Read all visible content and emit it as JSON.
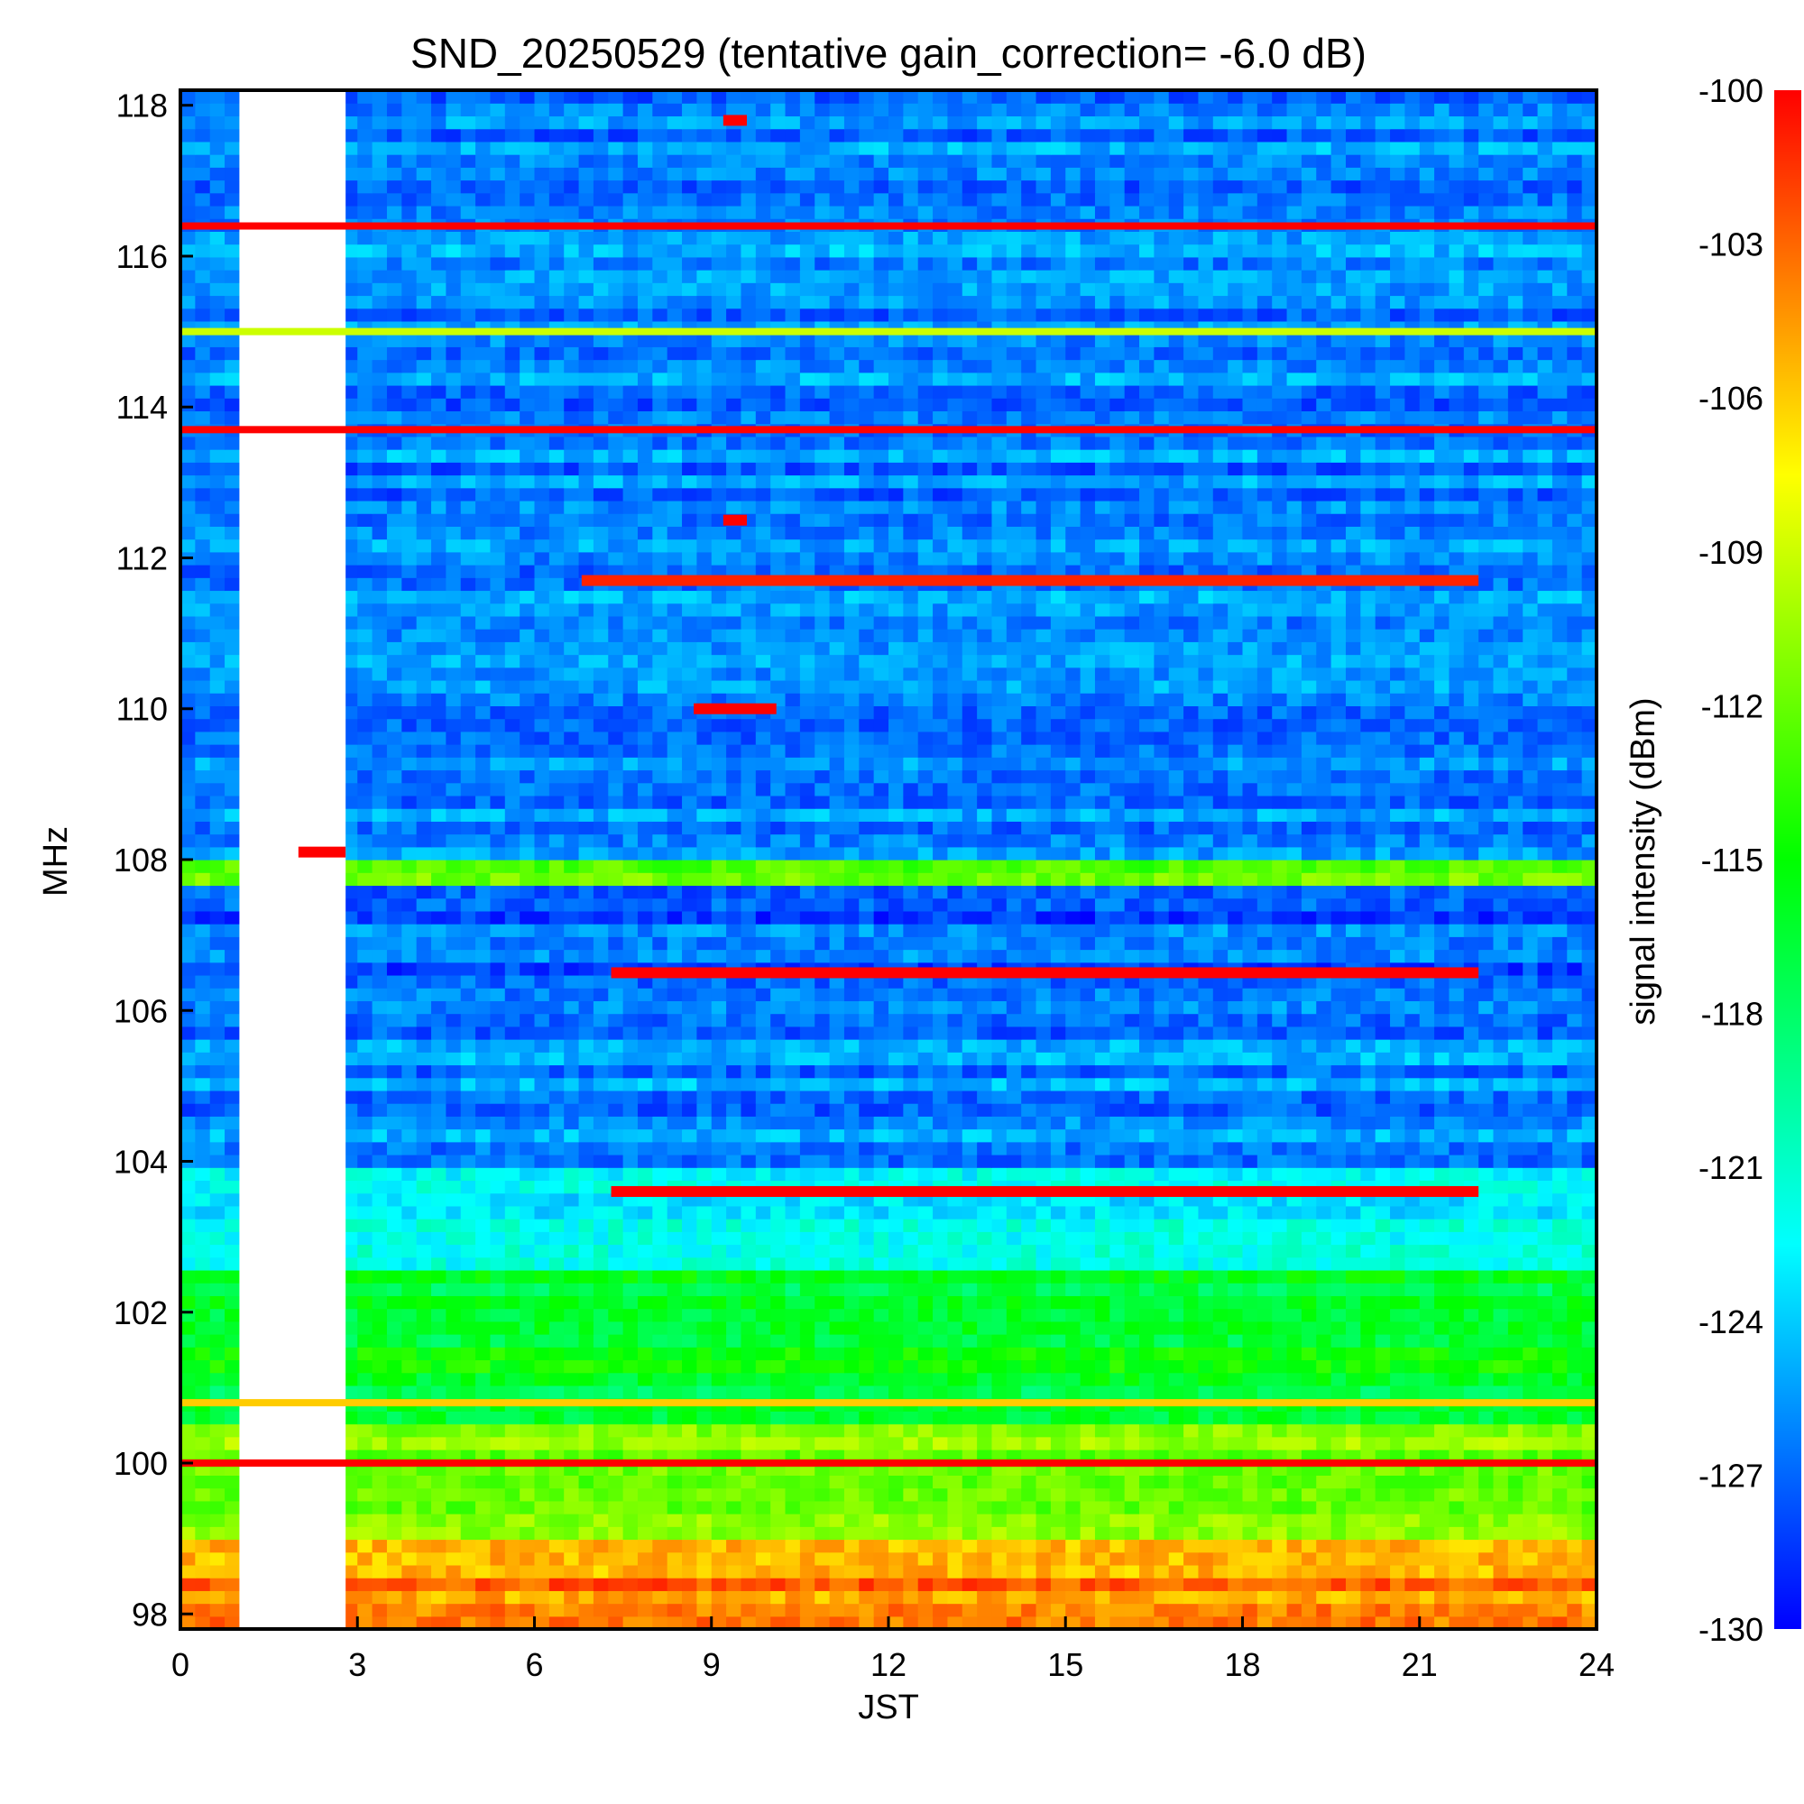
{
  "chart_data": {
    "type": "heatmap",
    "title": "SND_20250529 (tentative gain_correction= -6.0 dB)",
    "xlabel": "JST",
    "ylabel": "MHz",
    "colorbar_label": "signal intensity (dBm)",
    "xlim": [
      0,
      24
    ],
    "ylim": [
      97.8,
      118.2
    ],
    "x_ticks": [
      "0",
      "3",
      "6",
      "9",
      "12",
      "15",
      "18",
      "21",
      "24"
    ],
    "y_ticks": [
      "98",
      "100",
      "102",
      "104",
      "106",
      "108",
      "110",
      "112",
      "114",
      "116",
      "118"
    ],
    "colorbar_range": [
      -130,
      -100
    ],
    "colorbar_ticks": [
      "-100",
      "-103",
      "-106",
      "-109",
      "-112",
      "-115",
      "-118",
      "-121",
      "-124",
      "-127",
      "-130"
    ],
    "colormap": [
      "#0000ff",
      "#00ffff",
      "#00ff00",
      "#ffff00",
      "#ff0000"
    ],
    "no_data_intervals": [
      [
        1.0,
        2.8
      ]
    ],
    "background_level_by_band": [
      {
        "freq_range": [
          97.8,
          99.0
        ],
        "dBm": -104
      },
      {
        "freq_range": [
          99.0,
          100.6
        ],
        "dBm": -111
      },
      {
        "freq_range": [
          100.6,
          102.6
        ],
        "dBm": -116
      },
      {
        "freq_range": [
          102.6,
          104.0
        ],
        "dBm": -122
      },
      {
        "freq_range": [
          104.0,
          106.0
        ],
        "dBm": -126
      },
      {
        "freq_range": [
          106.0,
          107.6
        ],
        "dBm": -127
      },
      {
        "freq_range": [
          107.6,
          108.0
        ],
        "dBm": -113
      },
      {
        "freq_range": [
          108.0,
          118.2
        ],
        "dBm": -126
      }
    ],
    "strong_signals": [
      {
        "freq_mhz": 116.4,
        "time_range": [
          0,
          24
        ],
        "dBm": -100
      },
      {
        "freq_mhz": 115.0,
        "time_range": [
          0,
          24
        ],
        "dBm": -109
      },
      {
        "freq_mhz": 113.7,
        "time_range": [
          0,
          24
        ],
        "dBm": -100
      },
      {
        "freq_mhz": 111.7,
        "time_range": [
          6.8,
          22.0
        ],
        "dBm": -101
      },
      {
        "freq_mhz": 117.8,
        "time_range": [
          9.2,
          9.6
        ],
        "dBm": -100
      },
      {
        "freq_mhz": 112.5,
        "time_range": [
          9.2,
          9.6
        ],
        "dBm": -100
      },
      {
        "freq_mhz": 110.0,
        "time_range": [
          8.7,
          10.1
        ],
        "dBm": -100
      },
      {
        "freq_mhz": 108.1,
        "time_range": [
          2.0,
          2.8
        ],
        "dBm": -100
      },
      {
        "freq_mhz": 106.5,
        "time_range": [
          7.3,
          22.0
        ],
        "dBm": -100
      },
      {
        "freq_mhz": 103.6,
        "time_range": [
          7.3,
          22.0
        ],
        "dBm": -100
      },
      {
        "freq_mhz": 100.0,
        "time_range": [
          0,
          24
        ],
        "dBm": -100
      },
      {
        "freq_mhz": 100.8,
        "time_range": [
          0,
          24
        ],
        "dBm": -106
      }
    ]
  }
}
